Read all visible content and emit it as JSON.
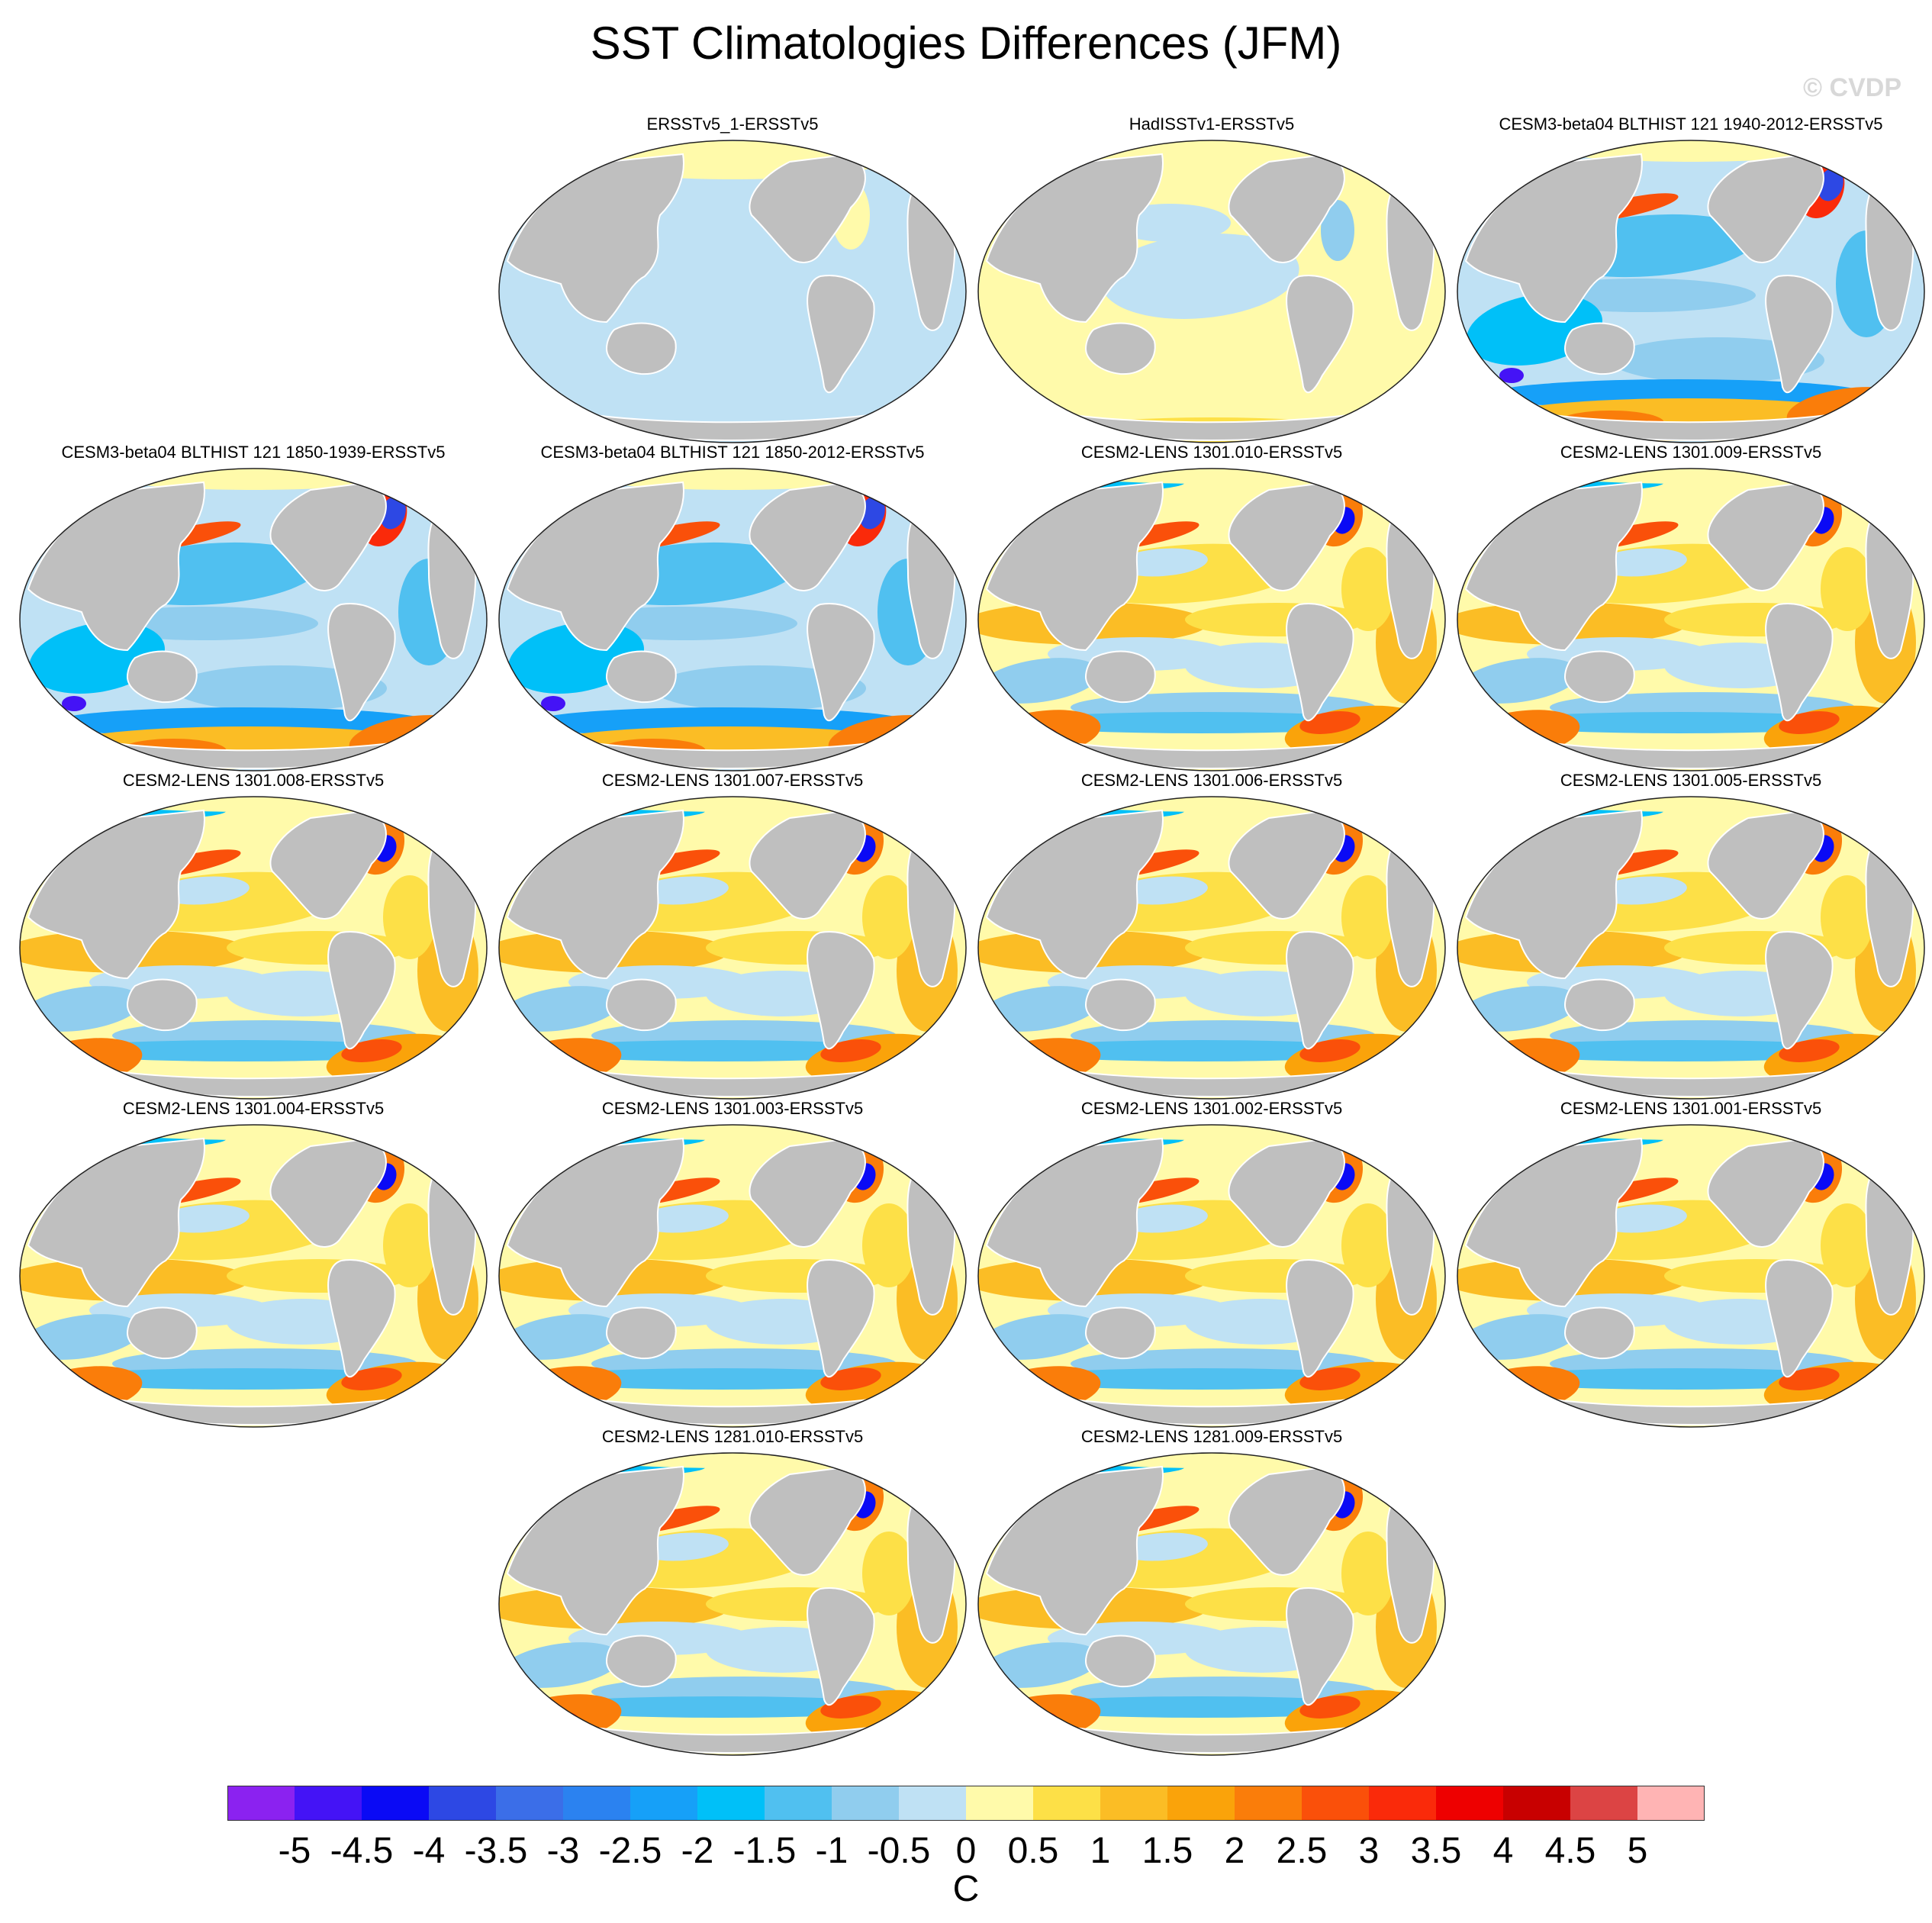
{
  "title": "SST Climatologies Differences (JFM)",
  "watermark": "© CVDP",
  "land_color": "#bfbfbf",
  "panels": [
    {
      "label": "ERSSTv5_1-ERSSTv5",
      "style": "uniform-cool"
    },
    {
      "label": "HadISSTv1-ERSSTv5",
      "style": "uniform-warm"
    },
    {
      "label": "CESM3-beta04 BLTHIST 121 1940-2012-ERSSTv5",
      "style": "cesm3"
    },
    {
      "label": "CESM3-beta04 BLTHIST 121 1850-1939-ERSSTv5",
      "style": "cesm3"
    },
    {
      "label": "CESM3-beta04 BLTHIST 121 1850-2012-ERSSTv5",
      "style": "cesm3"
    },
    {
      "label": "CESM2-LENS 1301.010-ERSSTv5",
      "style": "cesm2"
    },
    {
      "label": "CESM2-LENS 1301.009-ERSSTv5",
      "style": "cesm2"
    },
    {
      "label": "CESM2-LENS 1301.008-ERSSTv5",
      "style": "cesm2"
    },
    {
      "label": "CESM2-LENS 1301.007-ERSSTv5",
      "style": "cesm2"
    },
    {
      "label": "CESM2-LENS 1301.006-ERSSTv5",
      "style": "cesm2"
    },
    {
      "label": "CESM2-LENS 1301.005-ERSSTv5",
      "style": "cesm2"
    },
    {
      "label": "CESM2-LENS 1301.004-ERSSTv5",
      "style": "cesm2"
    },
    {
      "label": "CESM2-LENS 1301.003-ERSSTv5",
      "style": "cesm2"
    },
    {
      "label": "CESM2-LENS 1301.002-ERSSTv5",
      "style": "cesm2"
    },
    {
      "label": "CESM2-LENS 1301.001-ERSSTv5",
      "style": "cesm2"
    },
    {
      "label": "CESM2-LENS 1281.010-ERSSTv5",
      "style": "cesm2"
    },
    {
      "label": "CESM2-LENS 1281.009-ERSSTv5",
      "style": "cesm2"
    }
  ],
  "colorbar": {
    "colors": [
      "#8b22f0",
      "#4413f6",
      "#0a0af5",
      "#2d48e4",
      "#3b6ee8",
      "#2b82f0",
      "#16a0f8",
      "#00c0f8",
      "#50c0f0",
      "#90cdee",
      "#bfe1f4",
      "#fffaaa",
      "#fde047",
      "#fbbd25",
      "#faa30a",
      "#fa7d0a",
      "#fa500a",
      "#fa2a0a",
      "#ee0000",
      "#c80000",
      "#dc4444",
      "#ffb4b4"
    ],
    "labels": [
      "-5",
      "-4.5",
      "-4",
      "-3.5",
      "-3",
      "-2.5",
      "-2",
      "-1.5",
      "-1",
      "-0.5",
      "0",
      "0.5",
      "1",
      "1.5",
      "2",
      "2.5",
      "3",
      "3.5",
      "4",
      "4.5",
      "5"
    ],
    "units": "C"
  }
}
